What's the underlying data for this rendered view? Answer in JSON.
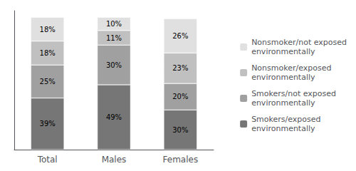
{
  "chart_data": {
    "type": "bar",
    "stacked": true,
    "categories": [
      "Total",
      "Males",
      "Females"
    ],
    "series": [
      {
        "name": "Smokers/exposed\nenvironmentally",
        "color": "#767676",
        "values": [
          39,
          49,
          30
        ],
        "value_labels": [
          "39%",
          "49%",
          "30%"
        ]
      },
      {
        "name": "Smokers/not exposed\nenvironmentally",
        "color": "#a0a0a0",
        "values": [
          25,
          30,
          20
        ],
        "value_labels": [
          "25%",
          "30%",
          "20%"
        ]
      },
      {
        "name": "Nonsmoker/exposed\nenvironmentally",
        "color": "#c0c0c0",
        "values": [
          18,
          11,
          23
        ],
        "value_labels": [
          "18%",
          "11%",
          "23%"
        ]
      },
      {
        "name": "Nonsmoker/not exposed\nenvironmentally",
        "color": "#e0e0e0",
        "values": [
          18,
          10,
          26
        ],
        "value_labels": [
          "18%",
          "10%",
          "26%"
        ]
      }
    ],
    "ylim": [
      0,
      105
    ],
    "yticks": [],
    "data_labels": true,
    "tick_labels": "x",
    "legend": "right",
    "grid": false
  }
}
